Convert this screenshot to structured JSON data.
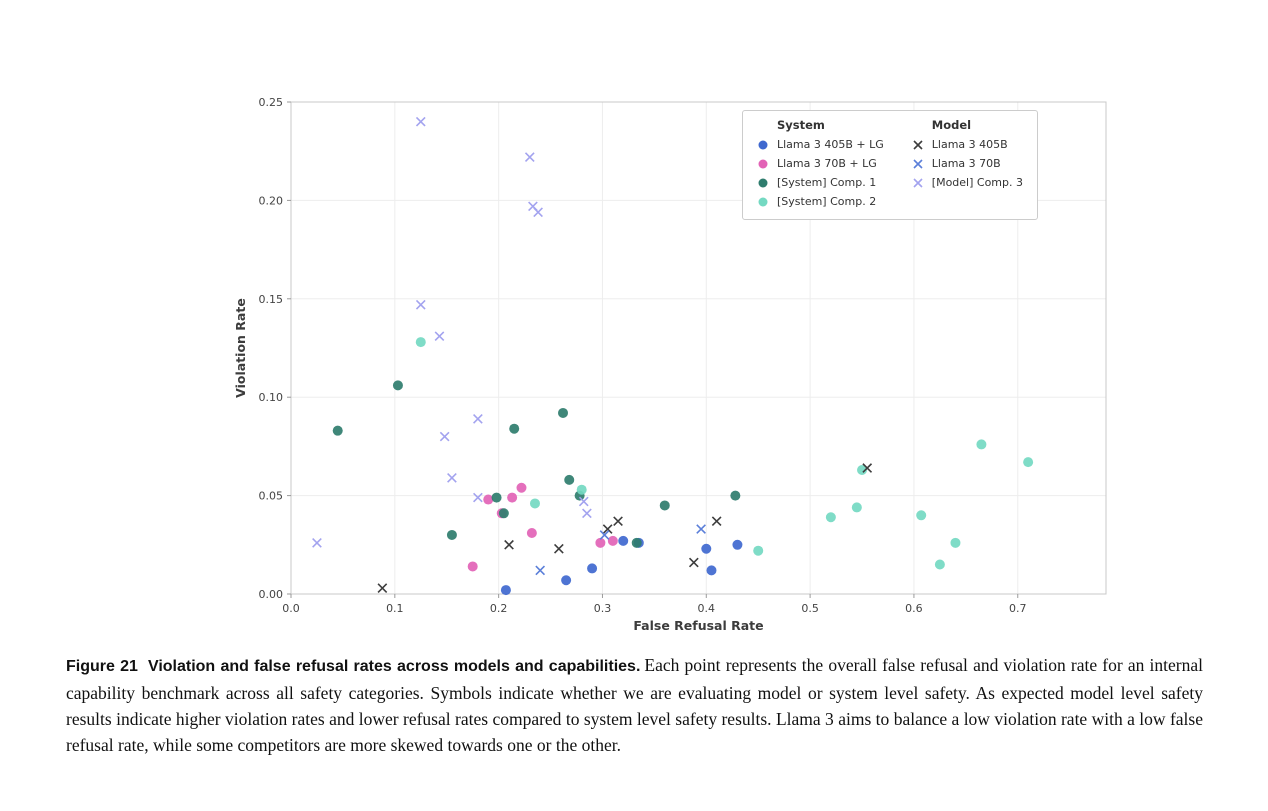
{
  "figure": {
    "caption_label": "Figure 21",
    "caption_title": "Violation and false refusal rates across models and capabilities.",
    "caption_body": "Each point represents the overall false refusal and violation rate for an internal capability benchmark across all safety categories. Symbols indicate whether we are evaluating model or system level safety. As expected model level safety results indicate higher violation rates and lower refusal rates compared to system level safety results. Llama 3 aims to balance a low violation rate with a low false refusal rate, while some competitors are more skewed towards one or the other."
  },
  "chart_data": {
    "type": "scatter",
    "xlabel": "False Refusal Rate",
    "ylabel": "Violation Rate",
    "xlim": [
      0.0,
      0.785
    ],
    "ylim": [
      0.0,
      0.25
    ],
    "grid": true,
    "legend_position": "top-right",
    "xtick_values": [
      0.0,
      0.1,
      0.2,
      0.3,
      0.4,
      0.5,
      0.6,
      0.7
    ],
    "xtick_labels": [
      "0.0",
      "0.1",
      "0.2",
      "0.3",
      "0.4",
      "0.5",
      "0.6",
      "0.7"
    ],
    "ytick_values": [
      0.0,
      0.05,
      0.1,
      0.15,
      0.2,
      0.25
    ],
    "ytick_labels": [
      "0.00",
      "0.05",
      "0.10",
      "0.15",
      "0.20",
      "0.25"
    ],
    "legend": {
      "system_title": "System",
      "model_title": "Model"
    },
    "series": [
      {
        "name": "Llama 3 405B + LG",
        "group": "System",
        "marker": "circle",
        "color": "#3f68cf",
        "points": [
          [
            0.207,
            0.002
          ],
          [
            0.265,
            0.007
          ],
          [
            0.29,
            0.013
          ],
          [
            0.32,
            0.027
          ],
          [
            0.335,
            0.026
          ],
          [
            0.4,
            0.023
          ],
          [
            0.405,
            0.012
          ],
          [
            0.43,
            0.025
          ]
        ]
      },
      {
        "name": "Llama 3 70B + LG",
        "group": "System",
        "marker": "circle",
        "color": "#e263b6",
        "points": [
          [
            0.175,
            0.014
          ],
          [
            0.19,
            0.048
          ],
          [
            0.203,
            0.041
          ],
          [
            0.213,
            0.049
          ],
          [
            0.222,
            0.054
          ],
          [
            0.232,
            0.031
          ],
          [
            0.298,
            0.026
          ],
          [
            0.31,
            0.027
          ]
        ]
      },
      {
        "name": "[System] Comp. 1",
        "group": "System",
        "marker": "circle",
        "color": "#2f7d6e",
        "points": [
          [
            0.045,
            0.083
          ],
          [
            0.103,
            0.106
          ],
          [
            0.155,
            0.03
          ],
          [
            0.198,
            0.049
          ],
          [
            0.205,
            0.041
          ],
          [
            0.215,
            0.084
          ],
          [
            0.262,
            0.092
          ],
          [
            0.268,
            0.058
          ],
          [
            0.278,
            0.05
          ],
          [
            0.333,
            0.026
          ],
          [
            0.36,
            0.045
          ],
          [
            0.428,
            0.05
          ]
        ]
      },
      {
        "name": "[System] Comp. 2",
        "group": "System",
        "marker": "circle",
        "color": "#74d9c2",
        "points": [
          [
            0.125,
            0.128
          ],
          [
            0.235,
            0.046
          ],
          [
            0.28,
            0.053
          ],
          [
            0.45,
            0.022
          ],
          [
            0.52,
            0.039
          ],
          [
            0.545,
            0.044
          ],
          [
            0.55,
            0.063
          ],
          [
            0.607,
            0.04
          ],
          [
            0.625,
            0.015
          ],
          [
            0.64,
            0.026
          ],
          [
            0.665,
            0.076
          ],
          [
            0.71,
            0.067
          ]
        ]
      },
      {
        "name": "Llama 3 405B",
        "group": "Model",
        "marker": "x",
        "color": "#3d3d3d",
        "points": [
          [
            0.088,
            0.003
          ],
          [
            0.21,
            0.025
          ],
          [
            0.258,
            0.023
          ],
          [
            0.305,
            0.033
          ],
          [
            0.315,
            0.037
          ],
          [
            0.388,
            0.016
          ],
          [
            0.41,
            0.037
          ],
          [
            0.555,
            0.064
          ]
        ]
      },
      {
        "name": "Llama 3 70B",
        "group": "Model",
        "marker": "x",
        "color": "#5b7fd9",
        "points": [
          [
            0.24,
            0.012
          ],
          [
            0.302,
            0.03
          ],
          [
            0.395,
            0.033
          ]
        ]
      },
      {
        "name": "[Model] Comp. 3",
        "group": "Model",
        "marker": "x",
        "color": "#a3a3ef",
        "points": [
          [
            0.125,
            0.24
          ],
          [
            0.23,
            0.222
          ],
          [
            0.233,
            0.197
          ],
          [
            0.238,
            0.194
          ],
          [
            0.125,
            0.147
          ],
          [
            0.143,
            0.131
          ],
          [
            0.148,
            0.08
          ],
          [
            0.155,
            0.059
          ],
          [
            0.18,
            0.089
          ],
          [
            0.18,
            0.049
          ],
          [
            0.025,
            0.026
          ],
          [
            0.282,
            0.047
          ],
          [
            0.285,
            0.041
          ]
        ]
      }
    ]
  }
}
